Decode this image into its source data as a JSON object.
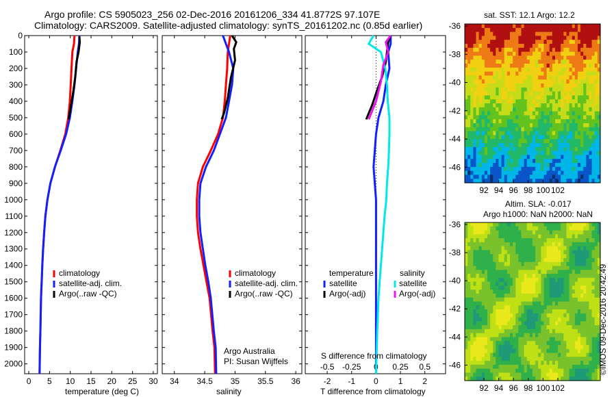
{
  "header": {
    "line1": "Argo profile: CS 5905023_256 02-Dec-2016 20161206_334 41.8772S 97.107E",
    "line2": "Climatology: CARS2009. Satellite-adjusted climatology: synTS_20161202.nc (0.85d earlier)"
  },
  "map_sst": {
    "title": "sat. SST: 12.1 Argo: 12.2",
    "yticks": [
      "-36",
      "-38",
      "-40",
      "-42",
      "-44",
      "-46"
    ],
    "xticks": [
      "92",
      "94",
      "96",
      "98",
      "100",
      "102"
    ],
    "lon_range": [
      90.5,
      104
    ],
    "lat_range": [
      -47.7,
      -35.8
    ],
    "colors": [
      "#08306b",
      "#0a55c8",
      "#00b6e8",
      "#22b86a",
      "#63c21e",
      "#c7dc18",
      "#f0d010",
      "#ee7a16",
      "#b01010"
    ]
  },
  "map_sla": {
    "title1": "Altim. SLA: -0.017",
    "title2": "Argo h1000: NaN h2000: NaN",
    "yticks": [
      "-36",
      "-38",
      "-40",
      "-42",
      "-44",
      "-46"
    ],
    "xticks": [
      "92",
      "94",
      "96",
      "98",
      "100",
      "102"
    ],
    "colors": [
      "#1e9a78",
      "#2fb04a",
      "#7ac22c",
      "#bfe014",
      "#e8e81a"
    ]
  },
  "credit": "©IMOS 09-Dec-2016 20:42:49",
  "colors": {
    "clim": "#ff0000",
    "sat": "#1020ff",
    "argo": "#000000",
    "sat_s": "#00e8e8",
    "argo_s": "#ee10ee",
    "zero": "#000000"
  },
  "chart_data": [
    {
      "type": "line",
      "xlabel": "temperature (deg C)",
      "ylabel": "",
      "xlim": [
        -1,
        31
      ],
      "ylim": [
        2060,
        0
      ],
      "xticks": [
        "0",
        "5",
        "10",
        "15",
        "20",
        "25",
        "30"
      ],
      "yticks": [
        "0",
        "100",
        "200",
        "300",
        "400",
        "500",
        "600",
        "700",
        "800",
        "900",
        "1000",
        "1100",
        "1200",
        "1300",
        "1400",
        "1500",
        "1600",
        "1700",
        "1800",
        "1900",
        "2000"
      ],
      "legend": [
        "climatology",
        "satellite-adj. clim.",
        "Argo(..raw -QC)"
      ],
      "series": [
        {
          "name": "climatology",
          "x": [
            11,
            10.9,
            10.5,
            10.3,
            10.1,
            9.9,
            9.5,
            8.8,
            7.6,
            6.3,
            5.2,
            4.5,
            4.0,
            3.7,
            3.45,
            3.25,
            3.1,
            2.95,
            2.8,
            2.7,
            2.6
          ],
          "y": [
            0,
            50,
            100,
            200,
            300,
            400,
            500,
            600,
            700,
            800,
            900,
            1000,
            1100,
            1200,
            1300,
            1400,
            1500,
            1600,
            1800,
            1900,
            2060
          ]
        },
        {
          "name": "satellite-adj. clim.",
          "x": [
            12.2,
            12.1,
            11.8,
            11.4,
            11.0,
            10.5,
            9.9,
            9.0,
            7.7,
            6.3,
            5.2,
            4.5,
            4.0,
            3.7,
            3.45,
            3.25,
            3.1,
            2.95,
            2.8,
            2.7,
            2.6
          ],
          "y": [
            0,
            50,
            100,
            200,
            300,
            400,
            500,
            600,
            700,
            800,
            900,
            1000,
            1100,
            1200,
            1300,
            1400,
            1500,
            1600,
            1800,
            1900,
            2060
          ]
        },
        {
          "name": "Argo(..raw -QC)",
          "x": [
            12.2,
            12.3,
            12.0,
            11.5,
            11.2,
            10.8,
            10.2,
            9.8,
            9.6
          ],
          "y": [
            5,
            40,
            100,
            160,
            250,
            330,
            420,
            480,
            510
          ]
        }
      ]
    },
    {
      "type": "line",
      "xlabel": "salinity",
      "xlim": [
        33.8,
        36.1
      ],
      "ylim": [
        2060,
        0
      ],
      "xticks": [
        "34",
        "34.5",
        "35",
        "35.5",
        "36"
      ],
      "legend": [
        "climatology",
        "satellite-adj. clim.",
        " Argo(..raw -QC)"
      ],
      "annotation": [
        "Argo Australia",
        "PI: Susan Wijffels"
      ],
      "series": [
        {
          "name": "climatology",
          "x": [
            34.92,
            34.9,
            34.88,
            34.87,
            34.85,
            34.83,
            34.8,
            34.72,
            34.6,
            34.47,
            34.39,
            34.37,
            34.37,
            34.39,
            34.43,
            34.48,
            34.53,
            34.58,
            34.63,
            34.66,
            34.67
          ],
          "y": [
            0,
            50,
            100,
            200,
            300,
            400,
            500,
            600,
            700,
            800,
            900,
            1000,
            1100,
            1200,
            1300,
            1400,
            1500,
            1600,
            1800,
            1900,
            2060
          ]
        },
        {
          "name": "satellite-adj. clim.",
          "x": [
            34.8,
            34.85,
            34.9,
            34.97,
            34.95,
            34.9,
            34.85,
            34.75,
            34.65,
            34.52,
            34.43,
            34.41,
            34.41,
            34.43,
            34.47,
            34.51,
            34.56,
            34.6,
            34.65,
            34.68,
            34.69
          ],
          "y": [
            0,
            50,
            100,
            200,
            300,
            400,
            500,
            600,
            700,
            800,
            900,
            1000,
            1100,
            1200,
            1300,
            1400,
            1500,
            1600,
            1800,
            1900,
            2060
          ]
        },
        {
          "name": "Argo(..raw -QC)",
          "x": [
            34.95,
            35.02,
            34.98,
            35.0,
            34.93,
            34.88,
            34.82,
            34.78
          ],
          "y": [
            0,
            40,
            80,
            150,
            260,
            380,
            470,
            510
          ]
        }
      ]
    },
    {
      "type": "line",
      "xlabel": "T difference from climatology",
      "xlabel2": "S difference from climatology",
      "xlim": [
        -2.9,
        2.85
      ],
      "ylim": [
        2060,
        0
      ],
      "xticks": [
        "-2",
        "-1",
        "0",
        "1",
        "2"
      ],
      "x2ticks": [
        "-0.5",
        "-0.25",
        "0",
        "0.25",
        "0.5"
      ],
      "legend_left": {
        "title": "temperature",
        "items": [
          "satellite",
          "Argo(-adj)"
        ]
      },
      "legend_right": {
        "title": "salinity",
        "items": [
          "satellite",
          "Argo(-adj)"
        ]
      },
      "series": [
        {
          "name": "satellite",
          "x": [
            0.6,
            0.6,
            0.5,
            0.55,
            0.4,
            0.3,
            0.1,
            0.0,
            -0.05,
            -0.1,
            -0.05,
            0.0,
            0.0,
            0.0,
            0.0,
            0.0,
            0.0,
            0.0,
            0.0,
            0.0
          ],
          "y": [
            0,
            50,
            100,
            200,
            300,
            400,
            500,
            600,
            700,
            800,
            900,
            1000,
            1100,
            1200,
            1300,
            1400,
            1500,
            1600,
            1800,
            2060
          ]
        },
        {
          "name": "Argo(-adj)",
          "x": [
            0.6,
            0.5,
            0.45,
            0.4,
            0.25,
            0.05,
            -0.15,
            -0.4
          ],
          "y": [
            0,
            40,
            100,
            160,
            250,
            330,
            420,
            510
          ]
        },
        {
          "name": "satellite",
          "x": [
            -0.1,
            -0.3,
            0.2,
            0.38,
            0.45,
            0.48,
            0.55,
            0.55,
            0.53,
            0.5,
            0.45,
            0.42,
            0.35,
            0.3,
            0.25,
            0.2,
            0.15,
            0.1,
            0.05,
            0.0
          ],
          "y": [
            0,
            50,
            100,
            200,
            300,
            400,
            500,
            600,
            700,
            800,
            900,
            1000,
            1100,
            1200,
            1300,
            1400,
            1500,
            1600,
            1800,
            2060
          ]
        },
        {
          "name": "Argo(-adj)",
          "x": [
            0.6,
            0.4,
            0.5,
            0.3,
            0.2,
            0.0,
            -0.3
          ],
          "y": [
            0,
            40,
            100,
            180,
            280,
            400,
            510
          ]
        }
      ]
    }
  ]
}
